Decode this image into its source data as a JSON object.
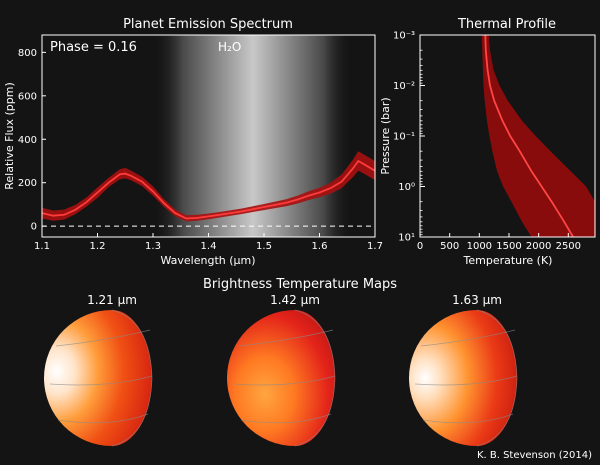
{
  "credit": "K. B. Stevenson (2014)",
  "colors": {
    "background": "#141414",
    "spectrum_line": "#ff3b3b",
    "spectrum_band": "#a60f0f",
    "profile_line": "#ff4545",
    "profile_band": "#8e0c0c"
  },
  "chart_data": [
    {
      "type": "line",
      "title": "Planet Emission Spectrum",
      "xlabel": "Wavelength (μm)",
      "ylabel": "Relative Flux (ppm)",
      "xlim": [
        1.1,
        1.7
      ],
      "ylim": [
        -50,
        880
      ],
      "x_ticks": [
        "1.1",
        "1.2",
        "1.3",
        "1.4",
        "1.5",
        "1.6",
        "1.7"
      ],
      "y_ticks": [
        "0",
        "200",
        "400",
        "600",
        "800"
      ],
      "grid": false,
      "annotations": {
        "phase": "Phase = 0.16",
        "band_label": "H₂O"
      },
      "highlight_band": [
        1.3,
        1.66
      ],
      "zero_line": 0,
      "series": [
        {
          "x": [
            1.1,
            1.12,
            1.14,
            1.16,
            1.18,
            1.2,
            1.22,
            1.24,
            1.25,
            1.26,
            1.28,
            1.3,
            1.32,
            1.34,
            1.36,
            1.38,
            1.4,
            1.42,
            1.44,
            1.46,
            1.48,
            1.5,
            1.52,
            1.54,
            1.56,
            1.58,
            1.6,
            1.62,
            1.64,
            1.66,
            1.67,
            1.68,
            1.7
          ],
          "values": [
            60,
            48,
            52,
            75,
            110,
            155,
            200,
            238,
            242,
            232,
            205,
            160,
            105,
            60,
            35,
            38,
            45,
            52,
            60,
            68,
            78,
            88,
            98,
            108,
            122,
            140,
            155,
            175,
            205,
            265,
            300,
            285,
            255
          ],
          "lower": [
            35,
            25,
            30,
            55,
            90,
            130,
            180,
            215,
            220,
            212,
            185,
            140,
            88,
            45,
            22,
            25,
            32,
            40,
            48,
            56,
            65,
            74,
            83,
            92,
            104,
            120,
            133,
            150,
            175,
            225,
            255,
            242,
            212
          ],
          "upper": [
            85,
            72,
            76,
            98,
            132,
            178,
            222,
            262,
            268,
            256,
            228,
            183,
            124,
            76,
            50,
            52,
            58,
            65,
            73,
            81,
            92,
            102,
            113,
            124,
            140,
            160,
            177,
            200,
            238,
            305,
            345,
            330,
            300
          ]
        }
      ]
    },
    {
      "type": "line",
      "title": "Thermal Profile",
      "xlabel": "Temperature (K)",
      "ylabel": "Pressure (bar)",
      "xlim": [
        0,
        2950
      ],
      "y_scale": "log",
      "ylim": [
        0.001,
        10
      ],
      "x_ticks": [
        "0",
        "500",
        "1000",
        "1500",
        "2000",
        "2500"
      ],
      "y_ticks": [
        "10⁻³",
        "10⁻²",
        "10⁻¹",
        "10⁰",
        "10¹"
      ],
      "y_inverted": true,
      "grid": false,
      "series": [
        {
          "pressure": [
            0.001,
            0.002,
            0.005,
            0.01,
            0.02,
            0.05,
            0.1,
            0.2,
            0.5,
            1,
            2,
            5,
            10
          ],
          "temperature": [
            1100,
            1110,
            1140,
            1180,
            1250,
            1390,
            1520,
            1680,
            1880,
            2050,
            2220,
            2430,
            2580
          ],
          "lower": [
            1040,
            1050,
            1060,
            1070,
            1090,
            1130,
            1170,
            1220,
            1300,
            1400,
            1540,
            1720,
            1880
          ],
          "upper": [
            1160,
            1180,
            1240,
            1340,
            1480,
            1720,
            1950,
            2200,
            2540,
            2800,
            2950,
            2950,
            2950
          ]
        }
      ]
    },
    {
      "type": "heatmap",
      "title": "Brightness Temperature Maps",
      "panels": [
        {
          "label": "1.21 μm"
        },
        {
          "label": "1.42 μm"
        },
        {
          "label": "1.63 μm"
        }
      ]
    }
  ]
}
